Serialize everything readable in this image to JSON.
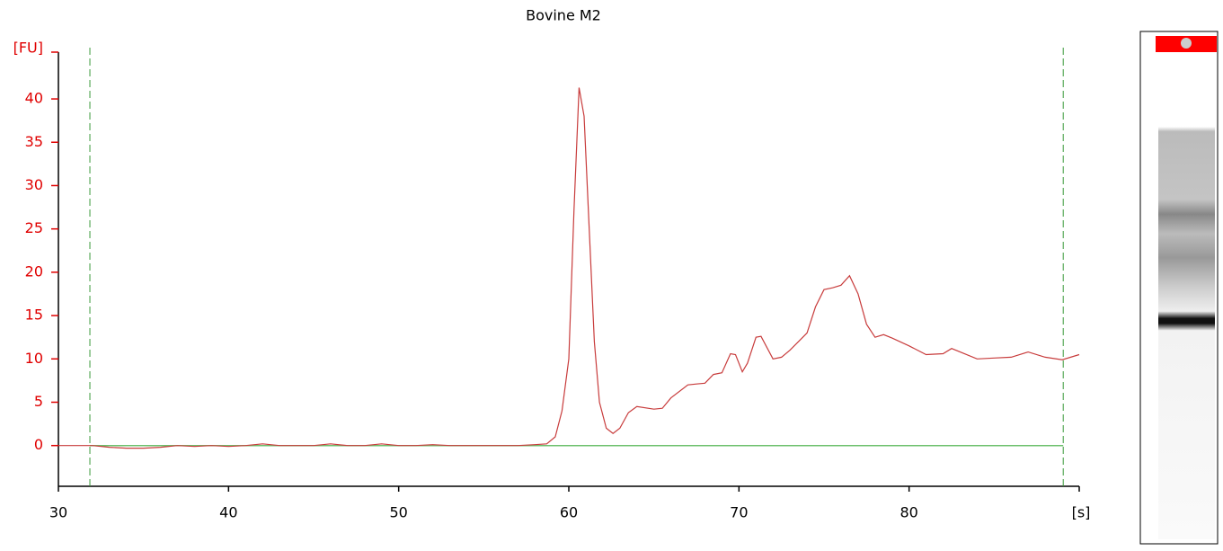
{
  "chart_data": {
    "type": "line",
    "title": "Bovine M2",
    "y_label": "[FU]",
    "x_label": "[s]",
    "xlim": [
      30,
      90
    ],
    "ylim": [
      -4.7,
      45.4
    ],
    "xticks": [
      30,
      40,
      50,
      60,
      70,
      80
    ],
    "yticks": [
      0,
      5,
      10,
      15,
      20,
      25,
      30,
      35,
      40
    ],
    "markers": [
      31.85,
      89.06
    ],
    "marker_color": "#3a9a3a",
    "baseline": 0,
    "baseline_color": "#6cc06c",
    "series": [
      {
        "color": "#c83c3c",
        "x": [
          30,
          32,
          33,
          34,
          35,
          36,
          37,
          38,
          39,
          40,
          41,
          42,
          43,
          44,
          45,
          46,
          47,
          48,
          49,
          50,
          51,
          52,
          53,
          54,
          55,
          56,
          57,
          58,
          58.7,
          59.2,
          59.6,
          60,
          60.3,
          60.6,
          60.9,
          61.2,
          61.5,
          61.8,
          62.2,
          62.6,
          63,
          63.5,
          64,
          65,
          65.5,
          66,
          67,
          67.5,
          68,
          68.5,
          69,
          69.5,
          69.8,
          70.2,
          70.5,
          71,
          71.3,
          72,
          72.5,
          73,
          74,
          74.5,
          75,
          75.5,
          76,
          76.5,
          77,
          77.5,
          78,
          78.5,
          79,
          80,
          81,
          82,
          82.5,
          83,
          84,
          85,
          86,
          87,
          88,
          89,
          90
        ],
        "values": [
          0,
          0,
          -0.2,
          -0.3,
          -0.3,
          -0.2,
          0,
          -0.1,
          0,
          -0.1,
          0,
          0.2,
          0,
          0,
          0,
          0.2,
          0,
          0,
          0.2,
          0,
          0,
          0.1,
          0,
          0,
          0,
          0,
          0,
          0.1,
          0.2,
          1,
          4,
          10,
          27,
          41.3,
          38,
          25,
          12,
          5,
          2,
          1.4,
          2,
          3.8,
          4.5,
          4.2,
          4.3,
          5.5,
          7,
          7.1,
          7.2,
          8.2,
          8.4,
          10.6,
          10.5,
          8.5,
          9.5,
          12.5,
          12.6,
          10,
          10.2,
          11,
          13,
          16,
          18,
          18.2,
          18.5,
          19.6,
          17.5,
          14,
          12.5,
          12.8,
          12.4,
          11.5,
          10.5,
          10.6,
          11.2,
          10.8,
          10,
          10.1,
          10.2,
          10.8,
          10.2,
          9.9,
          10.5
        ]
      }
    ]
  }
}
